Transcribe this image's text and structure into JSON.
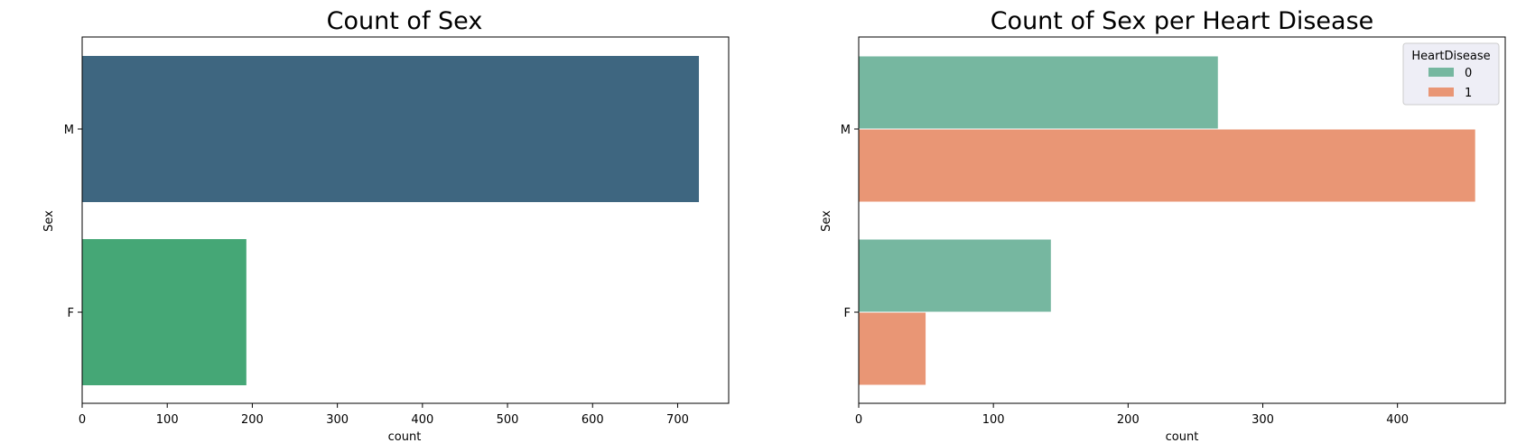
{
  "chart_data": [
    {
      "type": "bar",
      "orientation": "horizontal",
      "title": "Count of Sex",
      "xlabel": "count",
      "ylabel": "Sex",
      "categories": [
        "M",
        "F"
      ],
      "values": [
        725,
        193
      ],
      "xlim": [
        0,
        760
      ],
      "xticks": [
        "0",
        "100",
        "200",
        "300",
        "400",
        "500",
        "600",
        "700"
      ],
      "colors": [
        "#3e6680",
        "#45a776"
      ],
      "grid": false,
      "legend": null
    },
    {
      "type": "bar",
      "orientation": "horizontal",
      "title": "Count of Sex per Heart Disease",
      "xlabel": "count",
      "ylabel": "Sex",
      "categories": [
        "M",
        "F"
      ],
      "series": [
        {
          "name": "0",
          "values": [
            267,
            143
          ],
          "color": "#76b7a0"
        },
        {
          "name": "1",
          "values": [
            458,
            50
          ],
          "color": "#e99675"
        }
      ],
      "xlim": [
        0,
        480
      ],
      "xticks": [
        "0",
        "100",
        "200",
        "300",
        "400"
      ],
      "legend_title": "HeartDisease",
      "legend_position": "top-right",
      "grid": false
    }
  ]
}
